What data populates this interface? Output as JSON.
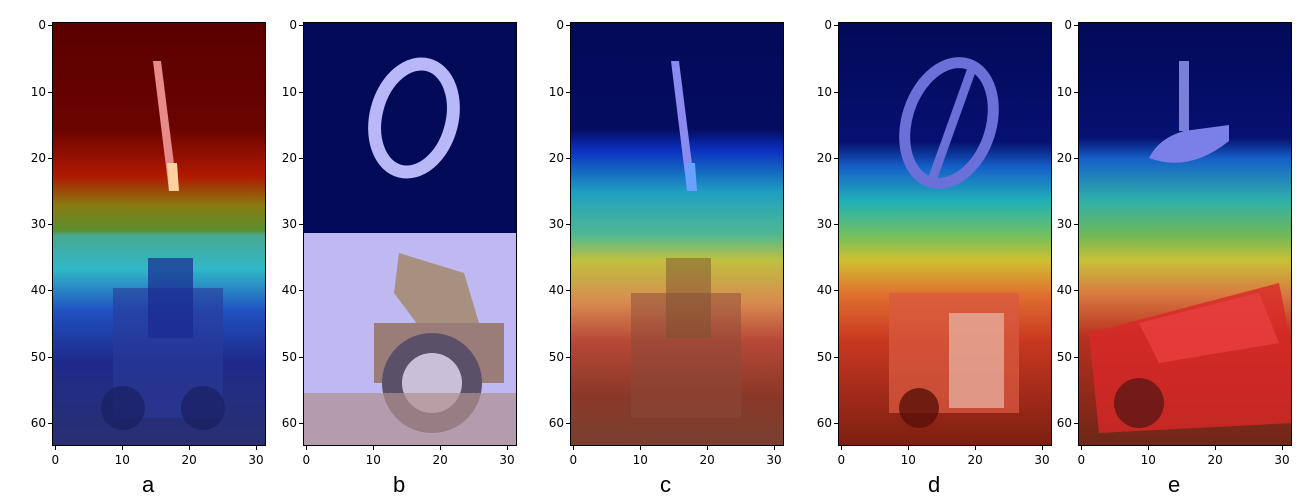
{
  "yticks": [
    "0",
    "10",
    "20",
    "30",
    "40",
    "50",
    "60"
  ],
  "xticks": [
    "0",
    "10",
    "20",
    "30"
  ],
  "panels": [
    {
      "label": "a",
      "content": "heatmap overlay of digit 1 above truck"
    },
    {
      "label": "b",
      "content": "original digit 0 above dump truck"
    },
    {
      "label": "c",
      "content": "heatmap overlay of digit 1 above truck"
    },
    {
      "label": "d",
      "content": "heatmap overlay of digit 0 above truck"
    },
    {
      "label": "e",
      "content": "heatmap overlay of hooked digit above red car"
    }
  ]
}
